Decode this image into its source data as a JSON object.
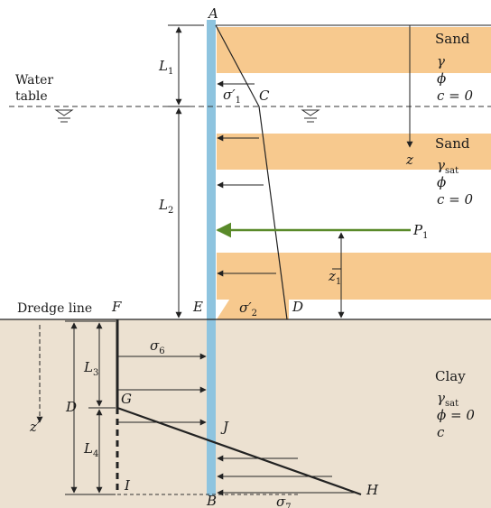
{
  "points": {
    "A": "A",
    "B": "B",
    "C": "C",
    "D": "D",
    "E": "E",
    "F": "F",
    "G": "G",
    "H": "H",
    "I": "I",
    "J": "J"
  },
  "dims": {
    "L1": "L",
    "L1_sub": "1",
    "L2": "L",
    "L2_sub": "2",
    "L3": "L",
    "L3_sub": "3",
    "L4": "L",
    "L4_sub": "4",
    "D": "D",
    "z1": "z",
    "z1_sub": "1"
  },
  "labels": {
    "water_table_1": "Water",
    "water_table_2": "table",
    "dredge_line": "Dredge line",
    "z": "z",
    "z_prime": "z′",
    "P1": "P",
    "P1_sub": "1"
  },
  "stresses": {
    "s1": "σ′",
    "s1_sub": "1",
    "s2": "σ′",
    "s2_sub": "2",
    "s6": "σ",
    "s6_sub": "6",
    "s7": "σ",
    "s7_sub": "7"
  },
  "layers": {
    "sand1": {
      "name": "Sand",
      "p1": "γ",
      "p2": "ϕ",
      "p3": "c = 0"
    },
    "sand2": {
      "name": "Sand",
      "p1": "γ",
      "p1_sub": "sat",
      "p2": "ϕ",
      "p3": "c = 0"
    },
    "clay": {
      "name": "Clay",
      "p1": "γ",
      "p1_sub": "sat",
      "p2": "ϕ = 0",
      "p3": "c"
    }
  },
  "colors": {
    "sand": "#f7c98e",
    "clay": "#ece1d1",
    "sheet_pile": "#8ec4df",
    "resultant": "#5a8a2a"
  }
}
